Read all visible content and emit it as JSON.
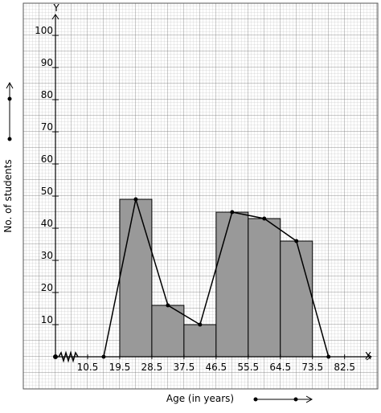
{
  "chart_data": {
    "type": "histogram",
    "x_label": "Age (in years)",
    "y_label": "No. of students",
    "x_axis_name": "X",
    "y_axis_name": "Y",
    "bins": [
      10.5,
      19.5,
      28.5,
      37.5,
      46.5,
      55.5,
      64.5,
      73.5,
      82.5
    ],
    "counts": [
      0,
      49,
      16,
      10,
      45,
      43,
      36,
      0
    ],
    "color": "#999999",
    "polygon": {
      "x": [
        15,
        24,
        33,
        42,
        51,
        60,
        69,
        78
      ],
      "values": [
        0,
        49,
        16,
        10,
        45,
        43,
        36,
        0
      ],
      "color": "#000000"
    },
    "xlim": [
      1.5,
      90
    ],
    "ylim": [
      0,
      110
    ],
    "xticks": [
      10.5,
      19.5,
      28.5,
      37.5,
      46.5,
      55.5,
      64.5,
      73.5,
      82.5
    ],
    "yticks": [
      10,
      20,
      30,
      40,
      50,
      60,
      70,
      80,
      90,
      100
    ],
    "grid": true
  }
}
